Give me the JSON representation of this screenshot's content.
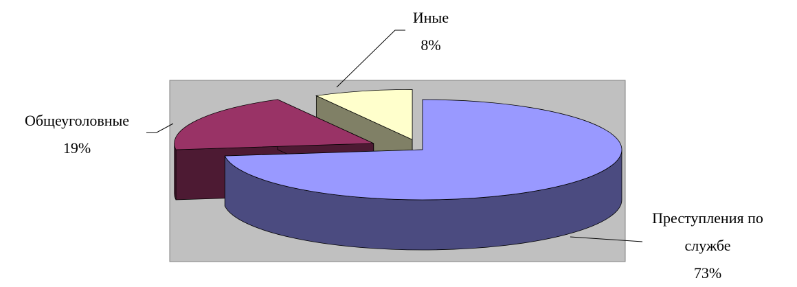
{
  "chart_data": {
    "type": "pie3d",
    "categories": [
      "Преступления по службе",
      "Общеуголовные",
      "Иные"
    ],
    "values": [
      73,
      19,
      8
    ],
    "value_labels": [
      "73%",
      "19%",
      "8%"
    ],
    "colors": [
      "#9999ff",
      "#993366",
      "#ffffcc"
    ],
    "side_colors": [
      "#4b4b80",
      "#4d1a33",
      "#808066"
    ]
  }
}
